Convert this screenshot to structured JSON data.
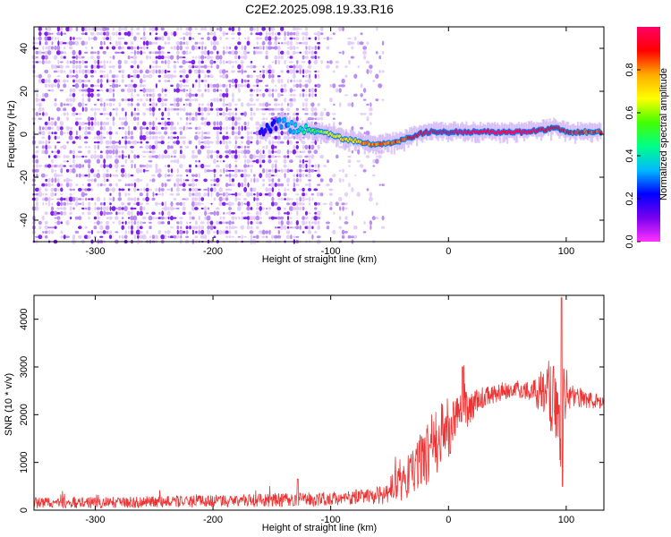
{
  "title": "C2E2.2025.098.19.33.R16",
  "chart_data": [
    {
      "type": "heatmap",
      "xlabel": "Height of straight line (km)",
      "ylabel": "Frequency (Hz)",
      "xlim": [
        -352,
        132
      ],
      "ylim": [
        -50,
        50
      ],
      "xticks": [
        -300,
        -200,
        -100,
        0,
        100
      ],
      "yticks": [
        -40,
        -20,
        0,
        20,
        40
      ],
      "colorbar": {
        "label": "Normalized spectral amplitude",
        "range": [
          0,
          1
        ],
        "ticks": [
          "0.0",
          "0.2",
          "0.4",
          "0.6",
          "0.8"
        ],
        "colors": [
          "#ff33ff",
          "#7700ee",
          "#0000ff",
          "#00bbff",
          "#00ff88",
          "#44ff00",
          "#ffff00",
          "#ffaa00",
          "#ff0000",
          "#ff0066"
        ]
      },
      "noise_region": {
        "x": [
          -352,
          -55
        ],
        "y": [
          -50,
          50
        ],
        "amplitude": [
          0.05,
          0.2
        ]
      },
      "signal_track": {
        "x": [
          -160,
          -150,
          -140,
          -130,
          -120,
          -110,
          -100,
          -90,
          -80,
          -70,
          -60,
          -50,
          -40,
          -30,
          -20,
          -10,
          0,
          20,
          40,
          60,
          80,
          90,
          100,
          130
        ],
        "frequency": [
          0,
          3,
          6,
          2,
          2,
          1,
          0,
          -2,
          -3,
          -4,
          -5,
          -4,
          -3,
          -1,
          1,
          1,
          1,
          1,
          1,
          1,
          2,
          3,
          1,
          1
        ],
        "amplitude": [
          0.2,
          0.2,
          0.3,
          0.4,
          0.5,
          0.6,
          0.7,
          0.7,
          0.75,
          0.8,
          0.8,
          0.8,
          0.85,
          0.9,
          0.95,
          0.95,
          0.95,
          0.98,
          1.0,
          1.0,
          0.95,
          0.9,
          0.9,
          0.85
        ]
      }
    },
    {
      "type": "line",
      "xlabel": "Height of straight line (km)",
      "ylabel": "SNR (10 * v/v)",
      "xlim": [
        -352,
        132
      ],
      "ylim": [
        0,
        4500
      ],
      "xticks": [
        -300,
        -200,
        -100,
        0,
        100
      ],
      "yticks": [
        0,
        1000,
        2000,
        3000,
        4000
      ],
      "line_color": "#ee3333",
      "envelope": {
        "x": [
          -352,
          -300,
          -200,
          -150,
          -100,
          -70,
          -55,
          -45,
          -35,
          -25,
          -15,
          -5,
          5,
          15,
          25,
          40,
          55,
          70,
          80,
          90,
          95,
          100,
          110,
          120,
          132
        ],
        "y": [
          150,
          160,
          190,
          210,
          240,
          280,
          320,
          500,
          700,
          1000,
          1300,
          1600,
          1900,
          2100,
          2300,
          2450,
          2550,
          2500,
          2450,
          2400,
          2300,
          2400,
          2350,
          2300,
          2250
        ],
        "noise_amplitude": [
          120,
          120,
          130,
          140,
          150,
          170,
          200,
          350,
          450,
          600,
          700,
          700,
          600,
          400,
          250,
          200,
          180,
          200,
          500,
          900,
          1500,
          300,
          200,
          180,
          170
        ]
      },
      "peaks": [
        {
          "x": 96,
          "y": 4450
        },
        {
          "x": 97,
          "y": 500
        },
        {
          "x": 12,
          "y": 3000
        },
        {
          "x": -128,
          "y": 650
        }
      ]
    }
  ]
}
